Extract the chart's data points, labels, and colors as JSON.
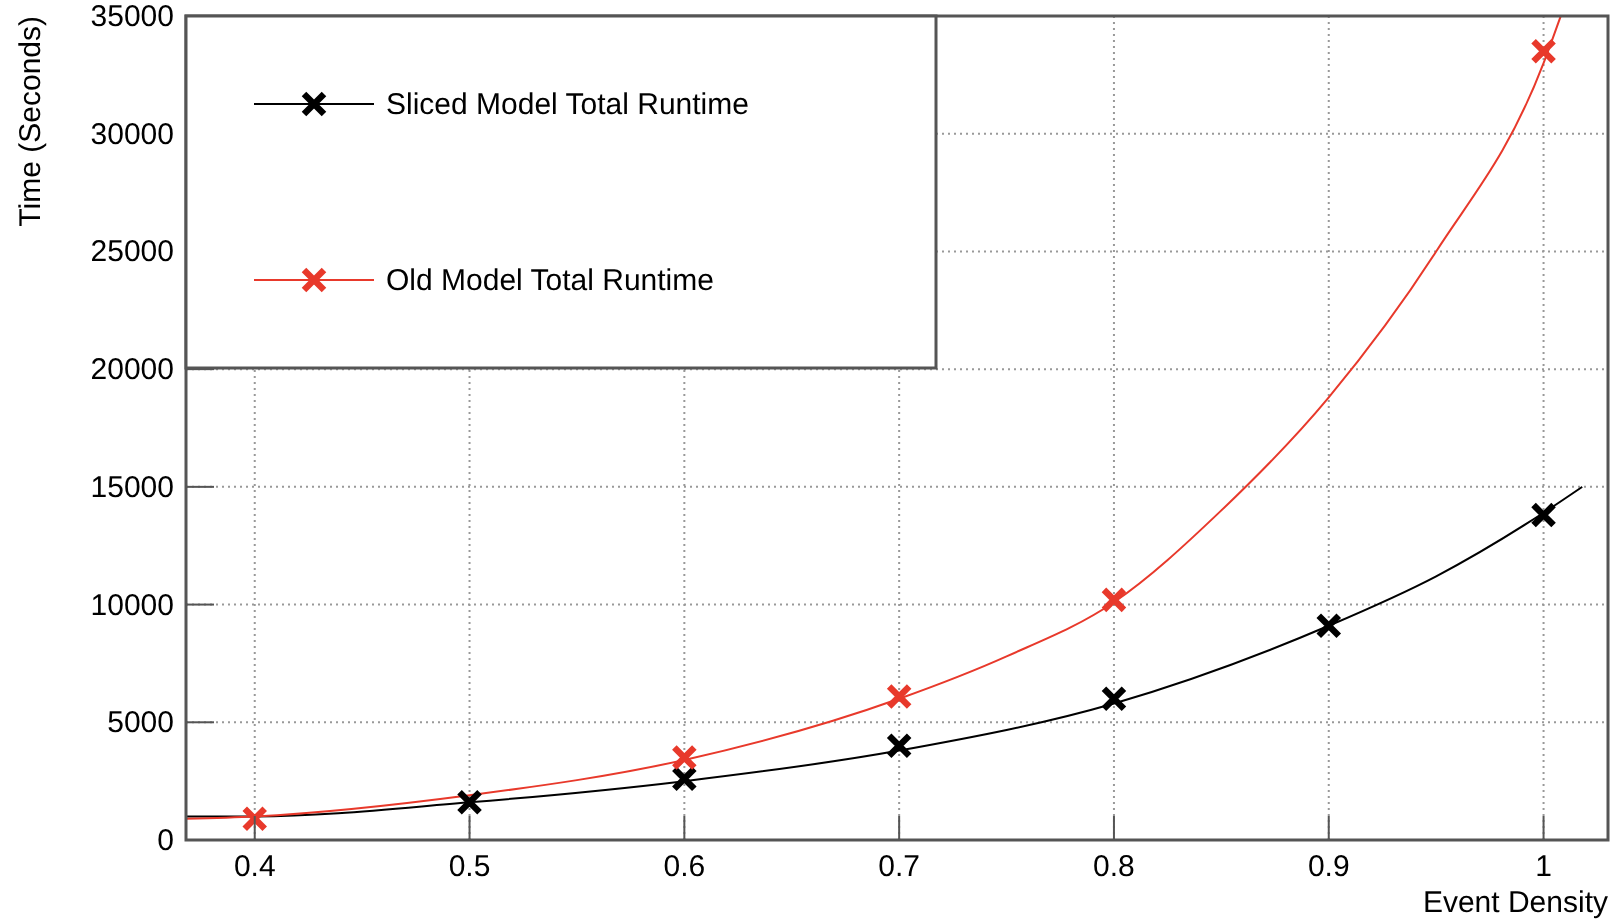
{
  "chart_data": {
    "type": "scatter",
    "xlabel": "Event Density",
    "ylabel": "Time (Seconds)",
    "xlim": [
      0.368,
      1.03
    ],
    "ylim": [
      0,
      35000
    ],
    "xticks": [
      0.4,
      0.5,
      0.6,
      0.7,
      0.8,
      0.9,
      1
    ],
    "yticks": [
      0,
      5000,
      10000,
      15000,
      20000,
      25000,
      30000,
      35000
    ],
    "grid": true,
    "legend": "top left",
    "marker": "cross",
    "series": [
      {
        "type": "line",
        "marker": "none",
        "color": "#000000",
        "x": [
          0.368,
          0.4,
          0.5,
          0.6,
          0.7,
          0.8,
          0.9,
          0.95,
          1.0,
          1.018
        ],
        "values": [
          1000,
          1000,
          1600,
          2500,
          3800,
          5800,
          9100,
          11200,
          13900,
          15000
        ]
      },
      {
        "type": "line",
        "marker": "none",
        "color": "#e8392b",
        "x": [
          0.368,
          0.4,
          0.5,
          0.6,
          0.7,
          0.75,
          0.8,
          0.85,
          0.9,
          0.95,
          1.0,
          1.008
        ],
        "values": [
          900,
          1000,
          1900,
          3400,
          6000,
          7800,
          10100,
          14000,
          18800,
          25000,
          33000,
          35000
        ]
      },
      {
        "name": "Sliced Model Total Runtime",
        "color": "#000000",
        "x": [
          0.5,
          0.6,
          0.7,
          0.8,
          0.9,
          1.0
        ],
        "values": [
          1600,
          2600,
          4000,
          6000,
          9100,
          13800
        ]
      },
      {
        "name": "Old Model Total Runtime",
        "color": "#e8392b",
        "x": [
          0.4,
          0.6,
          0.7,
          0.8,
          1.0
        ],
        "values": [
          900,
          3500,
          6100,
          10200,
          33500
        ]
      }
    ]
  }
}
